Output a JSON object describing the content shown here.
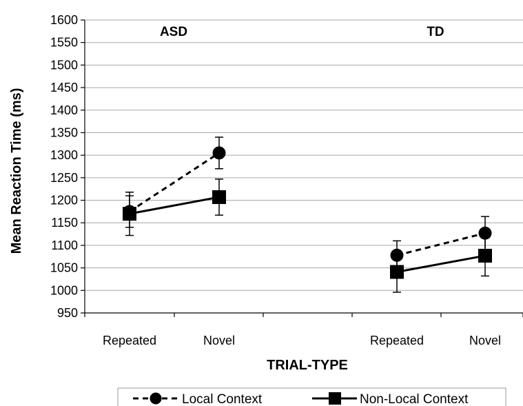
{
  "chart_data": {
    "type": "line",
    "xlabel": "TRIAL-TYPE",
    "ylabel": "Mean Reaction Time (ms)",
    "ylim": [
      950,
      1600
    ],
    "ystep": 50,
    "yticks": [
      "950",
      "1000",
      "1050",
      "1100",
      "1150",
      "1200",
      "1250",
      "1300",
      "1350",
      "1400",
      "1450",
      "1500",
      "1550",
      "1600"
    ],
    "grid": true,
    "legend_position": "bottom",
    "categories": [
      "Repeated",
      "Novel",
      "",
      "Repeated",
      "Novel"
    ],
    "groups": [
      {
        "label": "ASD",
        "category_indices": [
          0,
          1
        ]
      },
      {
        "label": "TD",
        "category_indices": [
          3,
          4
        ]
      }
    ],
    "series": [
      {
        "name": "Local Context",
        "marker": "circle",
        "line_style": "dashed",
        "color": "#000000",
        "segments": [
          {
            "group": "ASD",
            "values": [
              1175,
              1305
            ],
            "error": [
              35,
              35
            ]
          },
          {
            "group": "TD",
            "values": [
              1078,
              1127
            ],
            "error": [
              32,
              37
            ]
          }
        ]
      },
      {
        "name": "Non-Local Context",
        "marker": "square",
        "line_style": "solid",
        "color": "#000000",
        "segments": [
          {
            "group": "ASD",
            "values": [
              1170,
              1207
            ],
            "error": [
              48,
              40
            ]
          },
          {
            "group": "TD",
            "values": [
              1041,
              1077
            ],
            "error": [
              45,
              45
            ]
          }
        ]
      }
    ]
  }
}
